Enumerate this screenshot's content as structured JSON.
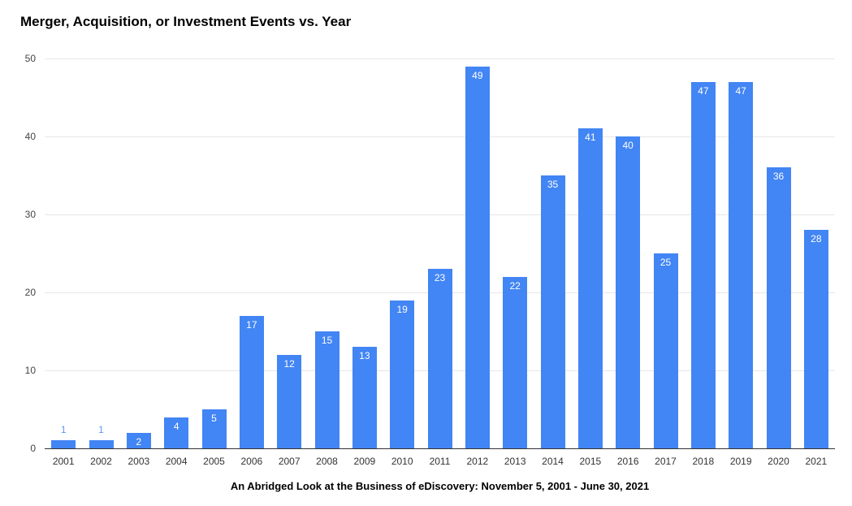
{
  "chart_data": {
    "type": "bar",
    "title": "Merger, Acquisition, or Investment Events vs. Year",
    "subtitle": "An Abridged Look at the Business of eDiscovery: November 5, 2001 - June 30, 2021",
    "categories": [
      "2001",
      "2002",
      "2003",
      "2004",
      "2005",
      "2006",
      "2007",
      "2008",
      "2009",
      "2010",
      "2011",
      "2012",
      "2013",
      "2014",
      "2015",
      "2016",
      "2017",
      "2018",
      "2019",
      "2020",
      "2021"
    ],
    "values": [
      1,
      1,
      2,
      4,
      5,
      17,
      12,
      15,
      13,
      19,
      23,
      49,
      22,
      35,
      41,
      40,
      25,
      47,
      47,
      36,
      28
    ],
    "xlabel": "",
    "ylabel": "",
    "ylim": [
      0,
      50
    ],
    "y_ticks": [
      0,
      10,
      20,
      30,
      40,
      50
    ],
    "grid": true,
    "legend": "none",
    "colors": {
      "bar": "#4285f4",
      "value_label_inside": "#ffffff",
      "value_label_outside": "#5e97f6",
      "gridline": "#e6e6e6",
      "axis_line": "#333333",
      "tick_label": "#444444",
      "title": "#000000"
    }
  }
}
